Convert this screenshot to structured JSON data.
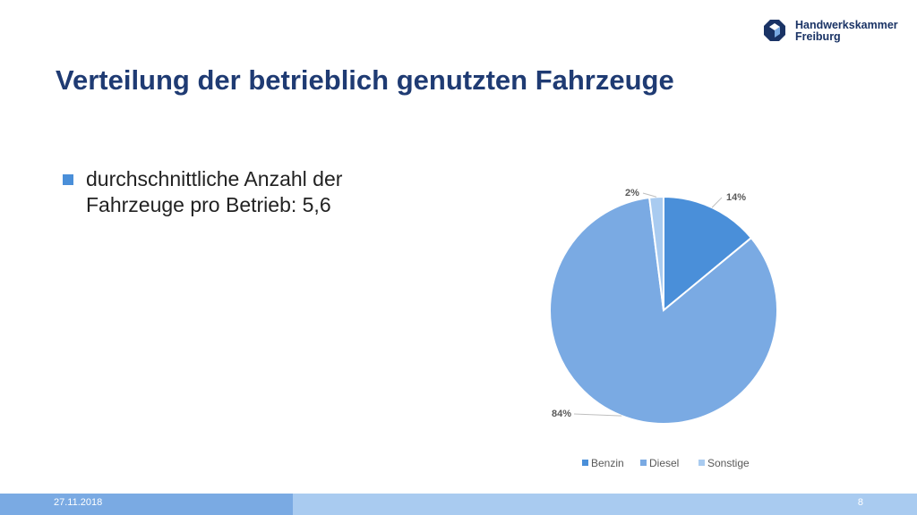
{
  "slide": {
    "title": "Verteilung der betrieblich genutzten Fahrzeuge",
    "bullet": "durchschnittliche Anzahl der Fahrzeuge pro Betrieb: 5,6",
    "logo_line1": "Handwerkskammer",
    "logo_line2": "Freiburg",
    "footer_date": "27.11.2018",
    "footer_page": "8"
  },
  "colors": {
    "title": "#1f3b73",
    "bullet": "#4a8fd9",
    "benzin": "#4a8fd9",
    "diesel": "#7aaae3",
    "sonstige": "#a9cbf0",
    "footer_left": "#7aaae3",
    "footer_right": "#a9cbf0"
  },
  "chart_data": {
    "type": "pie",
    "categories": [
      "Benzin",
      "Diesel",
      "Sonstige"
    ],
    "values": [
      14,
      84,
      2
    ],
    "labels": [
      "14%",
      "84%",
      "2%"
    ],
    "legend_position": "bottom"
  }
}
